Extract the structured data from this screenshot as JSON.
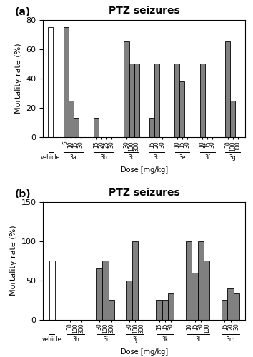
{
  "chart_data": [
    {
      "type": "bar",
      "panel_label": "(a)",
      "title": "PTZ seizures",
      "x_label": "Dose [mg/kg]",
      "y_label": "Mortality rate (%)",
      "categories": [
        null,
        "5",
        "10",
        "15",
        "30",
        "15",
        "20",
        "25",
        "30",
        "30",
        "100",
        "300",
        "15",
        "20",
        "30",
        "10",
        "15",
        "30",
        "10",
        "15",
        "30",
        "30",
        "100",
        "300"
      ],
      "groups": [
        "vehicle",
        "3a",
        "3a",
        "3a",
        "3a",
        "3b",
        "3b",
        "3b",
        "3b",
        "3c",
        "3c",
        "3c",
        "3d",
        "3d",
        "3d",
        "3e",
        "3e",
        "3e",
        "3f",
        "3f",
        "3f",
        "3g",
        "3g",
        "3g"
      ],
      "values": [
        75,
        75,
        25,
        13,
        0,
        13,
        0,
        0,
        0,
        65,
        50,
        50,
        13,
        50,
        0,
        50,
        38,
        0,
        50,
        0,
        0,
        65,
        25,
        0
      ],
      "colors": [
        "white",
        "#808080",
        "#808080",
        "#808080",
        "#808080",
        "#808080",
        "#808080",
        "#808080",
        "#808080",
        "#808080",
        "#808080",
        "#808080",
        "#808080",
        "#808080",
        "#808080",
        "#808080",
        "#808080",
        "#808080",
        "#808080",
        "#808080",
        "#808080",
        "#808080",
        "#808080",
        "#808080"
      ],
      "ylim": [
        0,
        80
      ],
      "yticks": [
        0,
        20,
        40,
        60,
        80
      ]
    },
    {
      "type": "bar",
      "panel_label": "(b)",
      "title": "PTZ seizures",
      "x_label": "Dose [mg/kg]",
      "y_label": "Mortality rate (%)",
      "categories": [
        null,
        "30",
        "100",
        "300",
        "30",
        "100",
        "300",
        "30",
        "100",
        "300",
        "15",
        "15",
        "30",
        "10",
        "15",
        "30",
        "100",
        "15",
        "20",
        "30"
      ],
      "groups": [
        "vehicle",
        "3h",
        "3h",
        "3h",
        "3i",
        "3i",
        "3i",
        "3j",
        "3j",
        "3j",
        "3k",
        "3k",
        "3k",
        "3l",
        "3l",
        "3l",
        "3l",
        "3m",
        "3m",
        "3m"
      ],
      "values": [
        75,
        0,
        0,
        0,
        65,
        75,
        25,
        50,
        100,
        0,
        25,
        25,
        33,
        100,
        60,
        100,
        75,
        25,
        40,
        33
      ],
      "colors": [
        "white",
        "#808080",
        "#808080",
        "#808080",
        "#808080",
        "#808080",
        "#808080",
        "#808080",
        "#808080",
        "#808080",
        "#808080",
        "#808080",
        "#808080",
        "#808080",
        "#808080",
        "#808080",
        "#808080",
        "#808080",
        "#808080",
        "#808080"
      ],
      "ylim": [
        0,
        150
      ],
      "yticks": [
        0,
        50,
        100,
        150
      ]
    }
  ]
}
